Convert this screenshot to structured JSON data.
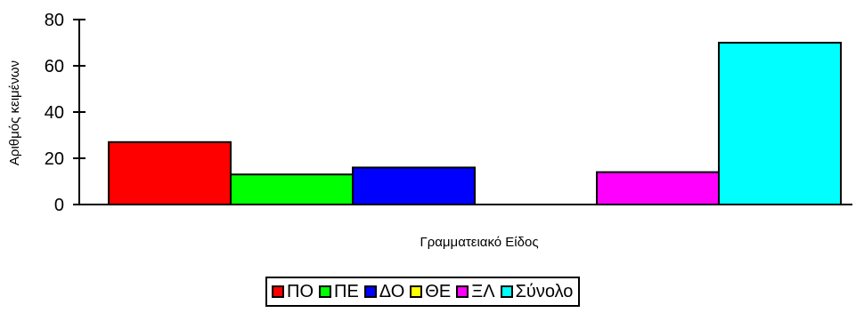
{
  "chart_data": {
    "type": "bar",
    "title": "",
    "xlabel": "Γραμματειακό Είδος",
    "ylabel": "Αριθμός κειμένων",
    "ylim": [
      0,
      80
    ],
    "yticks": [
      0,
      20,
      40,
      60,
      80
    ],
    "grid": false,
    "legend_position": "bottom-center",
    "series": [
      {
        "name": "ΠΟ",
        "value": 27,
        "color": "#ff0000"
      },
      {
        "name": "ΠΕ",
        "value": 13,
        "color": "#00ff00"
      },
      {
        "name": "ΔΟ",
        "value": 16,
        "color": "#0000ff"
      },
      {
        "name": "ΘΕ",
        "value": 0,
        "color": "#ffff00"
      },
      {
        "name": "ΞΛ",
        "value": 14,
        "color": "#ff00ff"
      },
      {
        "name": "Σύνολο",
        "value": 70,
        "color": "#00ffff"
      }
    ]
  }
}
